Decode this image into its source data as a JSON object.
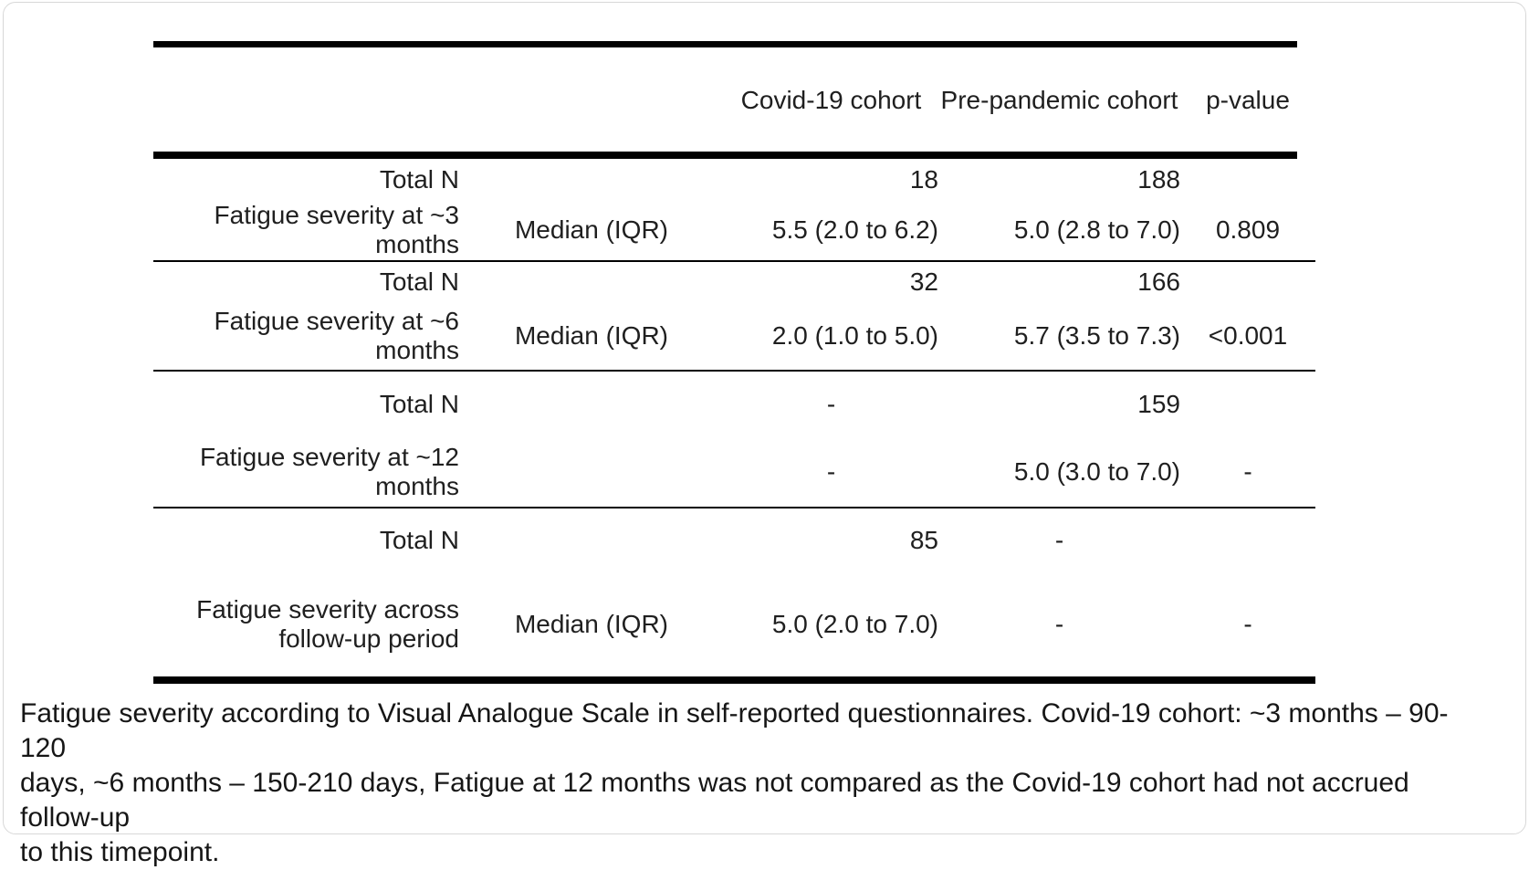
{
  "colors": {
    "rule": "#010101",
    "text": "#1f1f1f",
    "card_border": "#d8d8d8",
    "background": "#ffffff"
  },
  "table": {
    "header": {
      "covid": "Covid-19 cohort",
      "pre_pandemic": "Pre-pandemic cohort",
      "p_value": "p-value"
    },
    "sections": [
      {
        "label": "Fatigue severity at ~3\nmonths",
        "total_row": {
          "label": "Total N",
          "covid": "18",
          "pre": "188",
          "p": ""
        },
        "stat_row": {
          "stat": "Median (IQR)",
          "covid": "5.5 (2.0 to 6.2)",
          "pre": "5.0 (2.8 to 7.0)",
          "p": "0.809"
        }
      },
      {
        "label": "Fatigue severity at ~6\nmonths",
        "total_row": {
          "label": "Total N",
          "covid": "32",
          "pre": "166",
          "p": ""
        },
        "stat_row": {
          "stat": "Median (IQR)",
          "covid": "2.0 (1.0 to 5.0)",
          "pre": "5.7 (3.5 to 7.3)",
          "p": "<0.001"
        }
      },
      {
        "label": "Fatigue severity at ~12\nmonths",
        "total_row": {
          "label": "Total N",
          "covid": "-",
          "pre": "159",
          "p": ""
        },
        "stat_row": {
          "stat": "",
          "covid": "-",
          "pre": "5.0 (3.0 to 7.0)",
          "p": "-"
        }
      },
      {
        "label": "Fatigue severity across\nfollow-up period",
        "total_row": {
          "label": "Total N",
          "covid": "85",
          "pre": "-",
          "p": ""
        },
        "stat_row": {
          "stat": "Median (IQR)",
          "covid": "5.0 (2.0 to 7.0)",
          "pre": "-",
          "p": "-"
        }
      }
    ]
  },
  "caption": "Fatigue severity according to Visual Analogue Scale in self-reported questionnaires. Covid-19 cohort: ~3 months – 90-120\ndays, ~6 months – 150-210 days, Fatigue at 12 months was not compared as the Covid-19 cohort had not accrued follow-up\nto this timepoint."
}
